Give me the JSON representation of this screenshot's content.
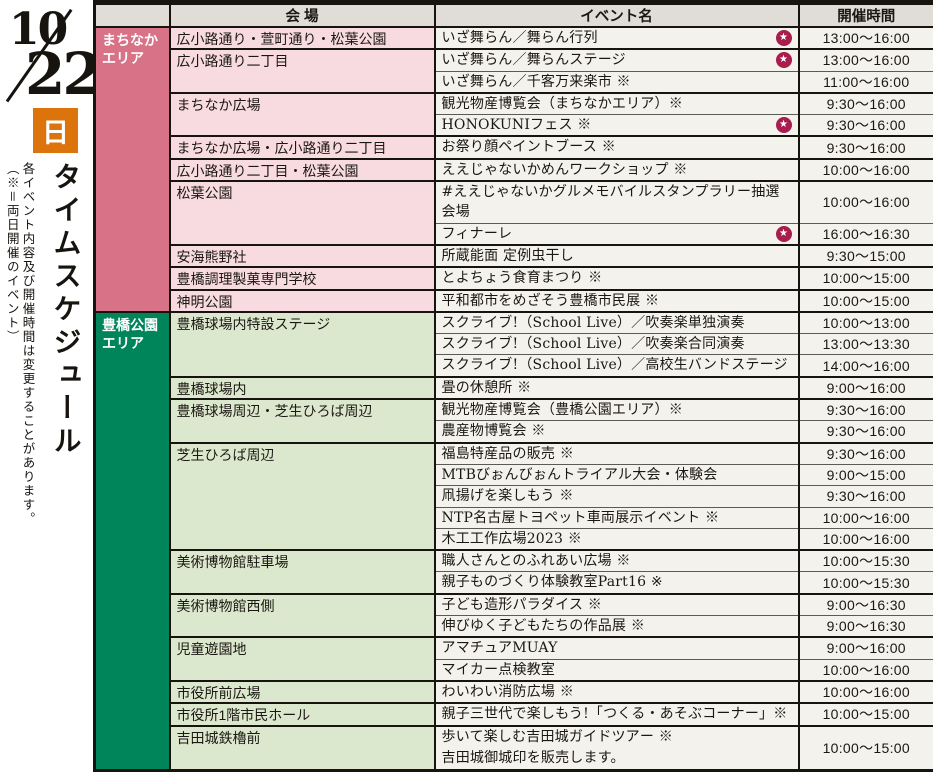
{
  "sidebar": {
    "month": "10",
    "day": "22",
    "weekday": "日",
    "weekday_badge_color": "#dc730b",
    "title": "タイムスケジュール",
    "note1": "各イベント内容及び開催時間は変更することがあります。",
    "note2": "（※＝両日開催のイベント）"
  },
  "table": {
    "headers": {
      "venue": "会 場",
      "event": "イベント名",
      "time": "開催時間"
    },
    "star_glyph": "★",
    "star_color": "#a81d4d",
    "cell_bg": "#f4f2ec",
    "areas": [
      {
        "label": "まちなかエリア",
        "color": "#d87287",
        "venue_bg": "#f8dbe0",
        "venues": [
          {
            "name": "広小路通り・萱町通り・松葉公園",
            "events": [
              {
                "name": "いざ舞らん／舞らん行列",
                "star": true,
                "time": "13:00～16:00"
              }
            ]
          },
          {
            "name": "広小路通り二丁目",
            "events": [
              {
                "name": "いざ舞らん／舞らんステージ",
                "star": true,
                "time": "13:00～16:00"
              },
              {
                "name": "いざ舞らん／千客万来楽市 ※",
                "time": "11:00～16:00"
              }
            ]
          },
          {
            "name": "まちなか広場",
            "events": [
              {
                "name": "観光物産博覧会（まちなかエリア）※",
                "time": "9:30～16:00"
              },
              {
                "name": "HONOKUNIフェス ※",
                "star": true,
                "time": "9:30～16:00"
              }
            ]
          },
          {
            "name": "まちなか広場・広小路通り二丁目",
            "events": [
              {
                "name": "お祭り顔ペイントブース ※",
                "time": "9:30～16:00"
              }
            ]
          },
          {
            "name": "広小路通り二丁目・松葉公園",
            "events": [
              {
                "name": "ええじゃないかめんワークショップ ※",
                "time": "10:00～16:00"
              }
            ]
          },
          {
            "name": "松葉公園",
            "events": [
              {
                "name": "#ええじゃないかグルメモバイルスタンプラリー抽選会場",
                "time": "10:00～16:00"
              },
              {
                "name": "フィナーレ",
                "star": true,
                "time": "16:00～16:30"
              }
            ]
          },
          {
            "name": "安海熊野社",
            "events": [
              {
                "name": "所蔵能面 定例虫干し",
                "time": "9:30～15:00"
              }
            ]
          },
          {
            "name": "豊橋調理製菓専門学校",
            "events": [
              {
                "name": "とよちょう食育まつり ※",
                "time": "10:00～15:00"
              }
            ]
          },
          {
            "name": "神明公園",
            "events": [
              {
                "name": "平和都市をめざそう豊橋市民展 ※",
                "time": "10:00～15:00"
              }
            ]
          }
        ]
      },
      {
        "label": "豊橋公園エリア",
        "color": "#00845a",
        "venue_bg": "#dce8cd",
        "venues": [
          {
            "name": "豊橋球場内特設ステージ",
            "events": [
              {
                "name": "スクライブ!（School Live）／吹奏楽単独演奏",
                "time": "10:00～13:00"
              },
              {
                "name": "スクライブ!（School Live）／吹奏楽合同演奏",
                "time": "13:00～13:30"
              },
              {
                "name": "スクライブ!（School Live）／高校生バンドステージ",
                "time": "14:00～16:00"
              }
            ]
          },
          {
            "name": "豊橋球場内",
            "events": [
              {
                "name": "畳の休憩所 ※",
                "time": "9:00～16:00"
              }
            ]
          },
          {
            "name": "豊橋球場周辺・芝生ひろば周辺",
            "events": [
              {
                "name": "観光物産博覧会（豊橋公園エリア）※",
                "time": "9:30～16:00"
              },
              {
                "name": "農産物博覧会 ※",
                "time": "9:30～16:00"
              }
            ]
          },
          {
            "name": "芝生ひろば周辺",
            "events": [
              {
                "name": "福島特産品の販売 ※",
                "time": "9:30～16:00"
              },
              {
                "name": "MTBびぉんびぉんトライアル大会・体験会",
                "time": "9:00～15:00"
              },
              {
                "name": "凧揚げを楽しもう ※",
                "time": "9:30～16:00"
              },
              {
                "name": "NTP名古屋トヨペット車両展示イベント ※",
                "time": "10:00～16:00"
              },
              {
                "name": "木工工作広場2023 ※",
                "time": "10:00～16:00"
              }
            ]
          },
          {
            "name": "美術博物館駐車場",
            "events": [
              {
                "name": "職人さんとのふれあい広場 ※",
                "time": "10:00～15:30"
              },
              {
                "name": "親子ものづくり体験教室Part16 ※",
                "time": "10:00～15:30"
              }
            ]
          },
          {
            "name": "美術博物館西側",
            "events": [
              {
                "name": "子ども造形パラダイス ※",
                "time": "9:00～16:30"
              },
              {
                "name": "伸びゆく子どもたちの作品展 ※",
                "time": "9:00～16:30"
              }
            ]
          },
          {
            "name": "児童遊園地",
            "events": [
              {
                "name": "アマチュアMUAY",
                "time": "9:00～16:00"
              },
              {
                "name": "マイカー点検教室",
                "time": "10:00～16:00"
              }
            ]
          },
          {
            "name": "市役所前広場",
            "events": [
              {
                "name": "わいわい消防広場 ※",
                "time": "10:00～16:00"
              }
            ]
          },
          {
            "name": "市役所1階市民ホール",
            "events": [
              {
                "name": "親子三世代で楽しもう!「つくる・あそぶコーナー」※",
                "time": "10:00～15:00"
              }
            ]
          },
          {
            "name": "吉田城鉄櫓前",
            "events": [
              {
                "name": "歩いて楽しむ吉田城ガイドツアー ※\n吉田城御城印を販売します。",
                "time": "10:00～15:00",
                "tall": true
              }
            ]
          }
        ]
      }
    ]
  }
}
